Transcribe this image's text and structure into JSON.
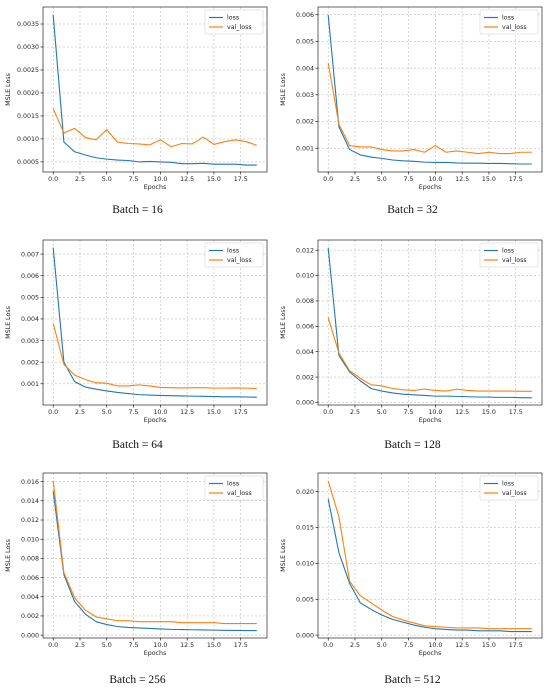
{
  "chart_data": [
    {
      "type": "line",
      "caption": "Batch = 16",
      "xlabel": "Epochs",
      "ylabel": "MSLE Loss",
      "xlim": [
        -0.95,
        19.95
      ],
      "ylim": [
        0.00028,
        0.00387
      ],
      "xticks": [
        0.0,
        2.5,
        5.0,
        7.5,
        10.0,
        12.5,
        15.0,
        17.5
      ],
      "xtick_labels": [
        "0.0",
        "2.5",
        "5.0",
        "7.5",
        "10.0",
        "12.5",
        "15.0",
        "17.5"
      ],
      "yticks": [
        0.0005,
        0.001,
        0.0015,
        0.002,
        0.0025,
        0.003,
        0.0035
      ],
      "ytick_labels": [
        "0.0005",
        "0.0010",
        "0.0015",
        "0.0020",
        "0.0025",
        "0.0030",
        "0.0035"
      ],
      "grid": true,
      "legend_position": "top-right",
      "x": [
        0,
        1,
        2,
        3,
        4,
        5,
        6,
        7,
        8,
        9,
        10,
        11,
        12,
        13,
        14,
        15,
        16,
        17,
        18,
        19
      ],
      "series": [
        {
          "name": "loss",
          "color": "#1f77b4",
          "values": [
            0.0037,
            0.00093,
            0.00072,
            0.00065,
            0.00059,
            0.00056,
            0.00054,
            0.00053,
            0.0005,
            0.00051,
            0.0005,
            0.00049,
            0.00046,
            0.00046,
            0.00047,
            0.00045,
            0.00045,
            0.00045,
            0.00043,
            0.00043
          ]
        },
        {
          "name": "val_loss",
          "color": "#ff7f0e",
          "values": [
            0.00166,
            0.00113,
            0.00123,
            0.00103,
            0.00098,
            0.0012,
            0.00093,
            0.0009,
            0.00089,
            0.00087,
            0.00098,
            0.00083,
            0.0009,
            0.00089,
            0.00104,
            0.00088,
            0.00094,
            0.00098,
            0.00094,
            0.00086
          ]
        }
      ]
    },
    {
      "type": "line",
      "caption": "Batch = 32",
      "xlabel": "Epochs",
      "ylabel": "MSLE Loss",
      "xlim": [
        -0.95,
        19.95
      ],
      "ylim": [
        0.00011,
        0.00629
      ],
      "xticks": [
        0.0,
        2.5,
        5.0,
        7.5,
        10.0,
        12.5,
        15.0,
        17.5
      ],
      "xtick_labels": [
        "0.0",
        "2.5",
        "5.0",
        "7.5",
        "10.0",
        "12.5",
        "15.0",
        "17.5"
      ],
      "yticks": [
        0.001,
        0.002,
        0.003,
        0.004,
        0.005,
        0.006
      ],
      "ytick_labels": [
        "0.001",
        "0.002",
        "0.003",
        "0.004",
        "0.005",
        "0.006"
      ],
      "grid": true,
      "legend_position": "top-right",
      "x": [
        0,
        1,
        2,
        3,
        4,
        5,
        6,
        7,
        8,
        9,
        10,
        11,
        12,
        13,
        14,
        15,
        16,
        17,
        18,
        19
      ],
      "series": [
        {
          "name": "loss",
          "color": "#1f77b4",
          "values": [
            0.006,
            0.0018,
            0.00095,
            0.00075,
            0.00067,
            0.00062,
            0.00056,
            0.00053,
            0.00051,
            0.00048,
            0.00047,
            0.00047,
            0.00045,
            0.00044,
            0.00044,
            0.00043,
            0.00043,
            0.00042,
            0.00041,
            0.00041
          ]
        },
        {
          "name": "val_loss",
          "color": "#ff7f0e",
          "values": [
            0.0042,
            0.0019,
            0.0011,
            0.00105,
            0.00105,
            0.00095,
            0.0009,
            0.0009,
            0.00095,
            0.00085,
            0.0011,
            0.00085,
            0.0009,
            0.00085,
            0.0008,
            0.00085,
            0.0008,
            0.0008,
            0.00085,
            0.00085
          ]
        }
      ]
    },
    {
      "type": "line",
      "caption": "Batch = 64",
      "xlabel": "Epochs",
      "ylabel": "MSLE Loss",
      "xlim": [
        -0.95,
        19.95
      ],
      "ylim": [
        2e-05,
        0.00765
      ],
      "xticks": [
        0.0,
        2.5,
        5.0,
        7.5,
        10.0,
        12.5,
        15.0,
        17.5
      ],
      "xtick_labels": [
        "0.0",
        "2.5",
        "5.0",
        "7.5",
        "10.0",
        "12.5",
        "15.0",
        "17.5"
      ],
      "yticks": [
        0.001,
        0.002,
        0.003,
        0.004,
        0.005,
        0.006,
        0.007
      ],
      "ytick_labels": [
        "0.001",
        "0.002",
        "0.003",
        "0.004",
        "0.005",
        "0.006",
        "0.007"
      ],
      "grid": true,
      "legend_position": "top-right",
      "x": [
        0,
        1,
        2,
        3,
        4,
        5,
        6,
        7,
        8,
        9,
        10,
        11,
        12,
        13,
        14,
        15,
        16,
        17,
        18,
        19
      ],
      "series": [
        {
          "name": "loss",
          "color": "#1f77b4",
          "values": [
            0.0073,
            0.002,
            0.0011,
            0.00085,
            0.00075,
            0.00067,
            0.0006,
            0.00055,
            0.0005,
            0.00048,
            0.00046,
            0.00045,
            0.00044,
            0.00043,
            0.00042,
            0.00041,
            0.0004,
            0.0004,
            0.00039,
            0.00038
          ]
        },
        {
          "name": "val_loss",
          "color": "#ff7f0e",
          "values": [
            0.0038,
            0.0019,
            0.0014,
            0.0012,
            0.00105,
            0.00103,
            0.0009,
            0.0009,
            0.00095,
            0.0009,
            0.00083,
            0.00082,
            0.00081,
            0.00082,
            0.00082,
            0.0008,
            0.0008,
            0.00081,
            0.0008,
            0.00078
          ]
        }
      ]
    },
    {
      "type": "line",
      "caption": "Batch = 128",
      "xlabel": "Epochs",
      "ylabel": "MSLE Loss",
      "xlim": [
        -0.95,
        19.95
      ],
      "ylim": [
        -0.0002,
        0.0128
      ],
      "xticks": [
        0.0,
        2.5,
        5.0,
        7.5,
        10.0,
        12.5,
        15.0,
        17.5
      ],
      "xtick_labels": [
        "0.0",
        "2.5",
        "5.0",
        "7.5",
        "10.0",
        "12.5",
        "15.0",
        "17.5"
      ],
      "yticks": [
        0.0,
        0.002,
        0.004,
        0.006,
        0.008,
        0.01,
        0.012
      ],
      "ytick_labels": [
        "0.000",
        "0.002",
        "0.004",
        "0.006",
        "0.008",
        "0.010",
        "0.012"
      ],
      "grid": true,
      "legend_position": "top-right",
      "x": [
        0,
        1,
        2,
        3,
        4,
        5,
        6,
        7,
        8,
        9,
        10,
        11,
        12,
        13,
        14,
        15,
        16,
        17,
        18,
        19
      ],
      "series": [
        {
          "name": "loss",
          "color": "#1f77b4",
          "values": [
            0.0122,
            0.0037,
            0.0024,
            0.0017,
            0.0011,
            0.0009,
            0.00075,
            0.00065,
            0.0006,
            0.00055,
            0.0005,
            0.0005,
            0.00048,
            0.00045,
            0.00043,
            0.00042,
            0.0004,
            0.0004,
            0.00038,
            0.00037
          ]
        },
        {
          "name": "val_loss",
          "color": "#ff7f0e",
          "values": [
            0.0067,
            0.0039,
            0.0025,
            0.0019,
            0.0014,
            0.0013,
            0.0011,
            0.001,
            0.00095,
            0.00105,
            0.00095,
            0.0009,
            0.00105,
            0.00095,
            0.0009,
            0.0009,
            0.0009,
            0.0009,
            0.00088,
            0.00088
          ]
        }
      ]
    },
    {
      "type": "line",
      "caption": "Batch = 256",
      "xlabel": "Epochs",
      "ylabel": "MSLE Loss",
      "xlim": [
        -0.95,
        19.95
      ],
      "ylim": [
        -0.0003,
        0.0169
      ],
      "xticks": [
        0.0,
        2.5,
        5.0,
        7.5,
        10.0,
        12.5,
        15.0,
        17.5
      ],
      "xtick_labels": [
        "0.0",
        "2.5",
        "5.0",
        "7.5",
        "10.0",
        "12.5",
        "15.0",
        "17.5"
      ],
      "yticks": [
        0.0,
        0.002,
        0.004,
        0.006,
        0.008,
        0.01,
        0.012,
        0.014,
        0.016
      ],
      "ytick_labels": [
        "0.000",
        "0.002",
        "0.004",
        "0.006",
        "0.008",
        "0.010",
        "0.012",
        "0.014",
        "0.016"
      ],
      "grid": true,
      "legend_position": "top-right",
      "x": [
        0,
        1,
        2,
        3,
        4,
        5,
        6,
        7,
        8,
        9,
        10,
        11,
        12,
        13,
        14,
        15,
        16,
        17,
        18,
        19
      ],
      "series": [
        {
          "name": "loss",
          "color": "#1f77b4",
          "values": [
            0.015,
            0.0063,
            0.0035,
            0.0022,
            0.0014,
            0.0011,
            0.0009,
            0.0008,
            0.00075,
            0.0007,
            0.00065,
            0.0006,
            0.00058,
            0.00056,
            0.00054,
            0.00052,
            0.0005,
            0.00049,
            0.00048,
            0.00047
          ]
        },
        {
          "name": "val_loss",
          "color": "#ff7f0e",
          "values": [
            0.0161,
            0.0065,
            0.0039,
            0.0026,
            0.0019,
            0.0017,
            0.0015,
            0.0015,
            0.0014,
            0.0014,
            0.0014,
            0.0014,
            0.0013,
            0.0013,
            0.0013,
            0.0013,
            0.0012,
            0.0012,
            0.0012,
            0.0012
          ]
        }
      ]
    },
    {
      "type": "line",
      "caption": "Batch = 512",
      "xlabel": "Epochs",
      "ylabel": "MSLE Loss",
      "xlim": [
        -0.95,
        19.95
      ],
      "ylim": [
        -0.0004,
        0.0226
      ],
      "xticks": [
        0.0,
        2.5,
        5.0,
        7.5,
        10.0,
        12.5,
        15.0,
        17.5
      ],
      "xtick_labels": [
        "0.0",
        "2.5",
        "5.0",
        "7.5",
        "10.0",
        "12.5",
        "15.0",
        "17.5"
      ],
      "yticks": [
        0.0,
        0.005,
        0.01,
        0.015,
        0.02
      ],
      "ytick_labels": [
        "0.000",
        "0.005",
        "0.010",
        "0.015",
        "0.020"
      ],
      "grid": true,
      "legend_position": "top-right",
      "x": [
        0,
        1,
        2,
        3,
        4,
        5,
        6,
        7,
        8,
        9,
        10,
        11,
        12,
        13,
        14,
        15,
        16,
        17,
        18,
        19
      ],
      "series": [
        {
          "name": "loss",
          "color": "#1f77b4",
          "values": [
            0.019,
            0.0115,
            0.0072,
            0.0045,
            0.0036,
            0.0028,
            0.0022,
            0.0018,
            0.0014,
            0.0011,
            0.0009,
            0.0008,
            0.0007,
            0.0007,
            0.0006,
            0.0006,
            0.0006,
            0.0005,
            0.0005,
            0.0005
          ]
        },
        {
          "name": "val_loss",
          "color": "#ff7f0e",
          "values": [
            0.0215,
            0.0165,
            0.0075,
            0.0055,
            0.0045,
            0.0035,
            0.0026,
            0.0021,
            0.0017,
            0.0013,
            0.0012,
            0.0011,
            0.001,
            0.001,
            0.001,
            0.0009,
            0.0009,
            0.0009,
            0.0009,
            0.0009
          ]
        }
      ]
    }
  ]
}
